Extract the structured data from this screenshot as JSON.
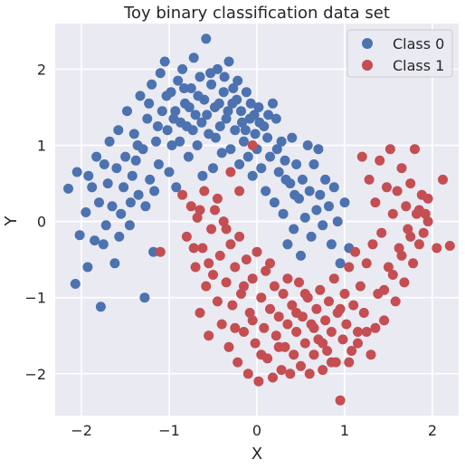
{
  "chart_data": {
    "type": "scatter",
    "title": "Toy binary classification data set",
    "xlabel": "X",
    "ylabel": "Y",
    "xlim": [
      -2.3,
      2.3
    ],
    "ylim": [
      -2.55,
      2.6
    ],
    "xticks": [
      -2,
      -1,
      0,
      1,
      2
    ],
    "xtick_labels": [
      "−2",
      "−1",
      "0",
      "1",
      "2"
    ],
    "yticks": [
      -2,
      -1,
      0,
      1,
      2
    ],
    "ytick_labels": [
      "−2",
      "−1",
      "0",
      "1",
      "2"
    ],
    "grid": true,
    "legend_position": "top-right",
    "background": "#eaeaf2",
    "series": [
      {
        "name": "Class 0",
        "color": "#4c72b0",
        "points": [
          [
            -2.07,
            -0.82
          ],
          [
            -1.93,
            -0.6
          ],
          [
            -2.15,
            0.43
          ],
          [
            -2.05,
            0.65
          ],
          [
            -2.02,
            -0.18
          ],
          [
            -1.95,
            0.12
          ],
          [
            -1.88,
            0.45
          ],
          [
            -1.83,
            0.85
          ],
          [
            -1.78,
            -1.12
          ],
          [
            -1.8,
            0.25
          ],
          [
            -1.75,
            -0.3
          ],
          [
            -1.7,
            0.5
          ],
          [
            -1.68,
            1.05
          ],
          [
            -1.62,
            -0.55
          ],
          [
            -1.6,
            0.7
          ],
          [
            -1.58,
            1.2
          ],
          [
            -1.55,
            0.1
          ],
          [
            -1.5,
            0.85
          ],
          [
            -1.48,
            1.45
          ],
          [
            -1.45,
            -0.05
          ],
          [
            -1.42,
            0.6
          ],
          [
            -1.4,
            1.15
          ],
          [
            -1.35,
            0.35
          ],
          [
            -1.33,
            1.65
          ],
          [
            -1.3,
            0.95
          ],
          [
            -1.28,
            -1.0
          ],
          [
            -1.25,
            1.35
          ],
          [
            -1.22,
            0.55
          ],
          [
            -1.2,
            1.8
          ],
          [
            -1.18,
            -0.4
          ],
          [
            -1.15,
            1.05
          ],
          [
            -1.12,
            0.75
          ],
          [
            -1.1,
            1.95
          ],
          [
            -1.08,
            1.45
          ],
          [
            -1.05,
            2.1
          ],
          [
            -1.02,
            1.2
          ],
          [
            -1.0,
            0.65
          ],
          [
            -0.98,
            1.7
          ],
          [
            -0.95,
            1.35
          ],
          [
            -0.92,
            0.45
          ],
          [
            -0.9,
            1.85
          ],
          [
            -0.88,
            1.05
          ],
          [
            -0.85,
            2.0
          ],
          [
            -0.82,
            1.55
          ],
          [
            -0.8,
            1.25
          ],
          [
            -0.78,
            0.85
          ],
          [
            -0.75,
            1.75
          ],
          [
            -0.72,
            2.15
          ],
          [
            -0.7,
            1.4
          ],
          [
            -0.68,
            1.0
          ],
          [
            -0.65,
            1.9
          ],
          [
            -0.62,
            0.6
          ],
          [
            -0.6,
            1.6
          ],
          [
            -0.58,
            2.4
          ],
          [
            -0.55,
            1.15
          ],
          [
            -0.52,
            1.8
          ],
          [
            -0.5,
            0.7
          ],
          [
            -0.48,
            1.5
          ],
          [
            -0.45,
            2.0
          ],
          [
            -0.42,
            1.25
          ],
          [
            -0.4,
            0.9
          ],
          [
            -0.38,
            1.7
          ],
          [
            -0.35,
            1.35
          ],
          [
            -0.32,
            2.1
          ],
          [
            -0.3,
            0.95
          ],
          [
            -0.28,
            1.55
          ],
          [
            -0.25,
            1.2
          ],
          [
            -0.22,
            1.85
          ],
          [
            -0.2,
            0.75
          ],
          [
            -0.18,
            1.45
          ],
          [
            -0.15,
            1.05
          ],
          [
            -0.12,
            1.7
          ],
          [
            -0.1,
            0.85
          ],
          [
            -0.08,
            1.35
          ],
          [
            -0.05,
            0.6
          ],
          [
            -0.02,
            1.15
          ],
          [
            0.0,
            0.95
          ],
          [
            0.02,
            1.5
          ],
          [
            0.05,
            0.7
          ],
          [
            0.08,
            1.25
          ],
          [
            0.1,
            0.4
          ],
          [
            0.12,
            1.1
          ],
          [
            0.15,
            0.85
          ],
          [
            0.18,
            1.55
          ],
          [
            0.2,
            0.25
          ],
          [
            0.22,
            1.35
          ],
          [
            0.25,
            0.65
          ],
          [
            0.28,
            1.05
          ],
          [
            0.3,
            0.1
          ],
          [
            0.32,
            0.8
          ],
          [
            0.35,
            -0.3
          ],
          [
            0.38,
            0.5
          ],
          [
            0.4,
            1.1
          ],
          [
            0.42,
            -0.1
          ],
          [
            0.45,
            0.75
          ],
          [
            0.48,
            0.3
          ],
          [
            0.5,
            -0.45
          ],
          [
            0.52,
            0.55
          ],
          [
            0.55,
            0.05
          ],
          [
            0.58,
            1.0
          ],
          [
            0.6,
            0.4
          ],
          [
            0.62,
            -0.2
          ],
          [
            0.65,
            0.75
          ],
          [
            0.68,
            0.15
          ],
          [
            0.7,
            0.95
          ],
          [
            0.72,
            0.35
          ],
          [
            0.75,
            -0.05
          ],
          [
            0.78,
            0.55
          ],
          [
            0.82,
            0.2
          ],
          [
            0.85,
            -0.3
          ],
          [
            0.88,
            0.45
          ],
          [
            0.92,
            0.0
          ],
          [
            0.95,
            -0.55
          ],
          [
            1.0,
            0.25
          ],
          [
            1.05,
            -0.35
          ],
          [
            -1.65,
            0.2
          ],
          [
            -1.52,
            0.45
          ],
          [
            -1.38,
            0.8
          ],
          [
            -1.27,
            0.2
          ],
          [
            -1.17,
            0.4
          ],
          [
            -0.97,
            1.0
          ],
          [
            -0.87,
            1.3
          ],
          [
            -0.77,
            1.5
          ],
          [
            -0.67,
            1.65
          ],
          [
            -0.57,
            1.4
          ],
          [
            -0.47,
            1.1
          ],
          [
            -0.37,
            1.9
          ],
          [
            -0.27,
            1.75
          ],
          [
            -0.17,
            1.3
          ],
          [
            -0.07,
            1.55
          ],
          [
            0.03,
            1.3
          ],
          [
            0.13,
            1.4
          ],
          [
            0.23,
            0.95
          ],
          [
            0.33,
            0.55
          ],
          [
            0.43,
            0.35
          ],
          [
            -1.72,
            -0.05
          ],
          [
            -1.85,
            -0.25
          ],
          [
            -1.92,
            0.6
          ],
          [
            -1.74,
            0.75
          ],
          [
            -1.57,
            -0.2
          ],
          [
            -1.44,
            0.25
          ],
          [
            -1.36,
            1.0
          ],
          [
            -1.23,
            1.55
          ],
          [
            -1.13,
            1.25
          ],
          [
            -1.03,
            1.65
          ],
          [
            -0.93,
            1.45
          ],
          [
            -0.83,
            1.75
          ],
          [
            -0.73,
            1.2
          ],
          [
            -0.63,
            1.3
          ],
          [
            -0.53,
            1.95
          ],
          [
            -0.43,
            1.55
          ],
          [
            -0.33,
            1.45
          ],
          [
            -0.23,
            1.6
          ],
          [
            -0.13,
            1.2
          ],
          [
            -0.03,
            1.4
          ]
        ]
      },
      {
        "name": "Class 1",
        "color": "#c44e52",
        "points": [
          [
            -1.1,
            -0.4
          ],
          [
            -0.85,
            0.35
          ],
          [
            -0.8,
            -0.2
          ],
          [
            -0.75,
            0.2
          ],
          [
            -0.7,
            -0.6
          ],
          [
            -0.68,
            0.05
          ],
          [
            -0.65,
            -1.2
          ],
          [
            -0.62,
            -0.35
          ],
          [
            -0.6,
            0.4
          ],
          [
            -0.58,
            -0.85
          ],
          [
            -0.55,
            -1.5
          ],
          [
            -0.52,
            -0.1
          ],
          [
            -0.5,
            -0.7
          ],
          [
            -0.48,
            0.15
          ],
          [
            -0.45,
            -1.05
          ],
          [
            -0.42,
            -0.45
          ],
          [
            -0.4,
            -1.35
          ],
          [
            -0.38,
            0.0
          ],
          [
            -0.35,
            -0.8
          ],
          [
            -0.32,
            -1.65
          ],
          [
            -0.3,
            -0.3
          ],
          [
            -0.28,
            -1.1
          ],
          [
            -0.25,
            -0.6
          ],
          [
            -0.22,
            -1.85
          ],
          [
            -0.2,
            -0.2
          ],
          [
            -0.18,
            -0.95
          ],
          [
            -0.15,
            -1.45
          ],
          [
            -0.12,
            -0.5
          ],
          [
            -0.1,
            -2.0
          ],
          [
            -0.08,
            -1.2
          ],
          [
            -0.05,
            -0.75
          ],
          [
            -0.02,
            -1.6
          ],
          [
            0.0,
            -0.4
          ],
          [
            0.02,
            -2.1
          ],
          [
            0.05,
            -1.0
          ],
          [
            0.08,
            -1.4
          ],
          [
            0.1,
            -0.65
          ],
          [
            0.12,
            -1.8
          ],
          [
            0.15,
            -1.15
          ],
          [
            0.18,
            -2.05
          ],
          [
            0.2,
            -0.85
          ],
          [
            0.22,
            -1.5
          ],
          [
            0.25,
            -1.25
          ],
          [
            0.28,
            -1.95
          ],
          [
            0.3,
            -0.95
          ],
          [
            0.32,
            -1.65
          ],
          [
            0.35,
            -1.35
          ],
          [
            0.38,
            -2.0
          ],
          [
            0.4,
            -1.1
          ],
          [
            0.42,
            -1.75
          ],
          [
            0.45,
            -1.45
          ],
          [
            0.48,
            -0.8
          ],
          [
            0.5,
            -1.9
          ],
          [
            0.52,
            -1.25
          ],
          [
            0.55,
            -1.6
          ],
          [
            0.58,
            -1.0
          ],
          [
            0.6,
            -2.0
          ],
          [
            0.62,
            -1.35
          ],
          [
            0.65,
            -1.75
          ],
          [
            0.68,
            -1.15
          ],
          [
            0.7,
            -1.55
          ],
          [
            0.72,
            -0.9
          ],
          [
            0.75,
            -1.95
          ],
          [
            0.78,
            -1.3
          ],
          [
            0.8,
            -1.7
          ],
          [
            0.82,
            -1.05
          ],
          [
            0.85,
            -1.45
          ],
          [
            0.88,
            -0.75
          ],
          [
            0.9,
            -1.85
          ],
          [
            0.92,
            -1.2
          ],
          [
            0.95,
            -2.35
          ],
          [
            0.98,
            -1.55
          ],
          [
            1.0,
            -0.95
          ],
          [
            1.02,
            -1.35
          ],
          [
            1.05,
            -0.6
          ],
          [
            1.08,
            -1.7
          ],
          [
            1.1,
            -1.1
          ],
          [
            1.12,
            -0.4
          ],
          [
            1.15,
            -1.45
          ],
          [
            1.18,
            -0.85
          ],
          [
            1.2,
            0.85
          ],
          [
            1.22,
            -1.2
          ],
          [
            1.25,
            -0.55
          ],
          [
            1.28,
            0.55
          ],
          [
            1.3,
            -1.75
          ],
          [
            1.32,
            -0.3
          ],
          [
            1.35,
            0.25
          ],
          [
            1.38,
            -0.95
          ],
          [
            1.4,
            0.8
          ],
          [
            1.42,
            -0.15
          ],
          [
            1.45,
            -1.3
          ],
          [
            1.48,
            0.45
          ],
          [
            1.5,
            -0.6
          ],
          [
            1.52,
            0.95
          ],
          [
            1.55,
            0.1
          ],
          [
            1.58,
            -1.05
          ],
          [
            1.6,
            0.4
          ],
          [
            1.62,
            -0.35
          ],
          [
            1.65,
            0.7
          ],
          [
            1.68,
            -0.8
          ],
          [
            1.7,
            0.2
          ],
          [
            1.72,
            -0.1
          ],
          [
            1.75,
            0.5
          ],
          [
            1.78,
            -0.55
          ],
          [
            1.8,
            0.95
          ],
          [
            1.82,
            0.1
          ],
          [
            1.85,
            -0.3
          ],
          [
            1.88,
            0.35
          ],
          [
            1.9,
            -0.15
          ],
          [
            1.92,
            0.1
          ],
          [
            1.95,
            0.0
          ],
          [
            2.05,
            -0.35
          ],
          [
            2.12,
            0.55
          ],
          [
            2.2,
            -0.32
          ],
          [
            -0.05,
            1.0
          ],
          [
            -0.3,
            0.65
          ],
          [
            -0.2,
            0.4
          ],
          [
            -0.45,
            0.3
          ],
          [
            -0.65,
            0.15
          ],
          [
            -0.72,
            -0.35
          ],
          [
            -0.55,
            -0.55
          ],
          [
            -0.35,
            -0.1
          ],
          [
            -0.25,
            -1.4
          ],
          [
            -0.15,
            -0.85
          ],
          [
            -0.05,
            -1.3
          ],
          [
            0.05,
            -1.75
          ],
          [
            0.15,
            -0.55
          ],
          [
            0.25,
            -1.65
          ],
          [
            0.35,
            -0.75
          ],
          [
            0.45,
            -1.2
          ],
          [
            0.55,
            -0.95
          ],
          [
            0.65,
            -1.4
          ],
          [
            0.75,
            -1.6
          ],
          [
            0.85,
            -1.85
          ],
          [
            0.95,
            -1.15
          ],
          [
            1.05,
            -1.85
          ],
          [
            1.15,
            -1.6
          ],
          [
            1.25,
            -1.45
          ],
          [
            1.35,
            -1.4
          ],
          [
            1.45,
            -0.9
          ],
          [
            1.55,
            -0.7
          ],
          [
            1.65,
            -0.45
          ],
          [
            1.75,
            -0.2
          ],
          [
            1.85,
            0.15
          ],
          [
            1.95,
            0.3
          ]
        ]
      }
    ]
  }
}
